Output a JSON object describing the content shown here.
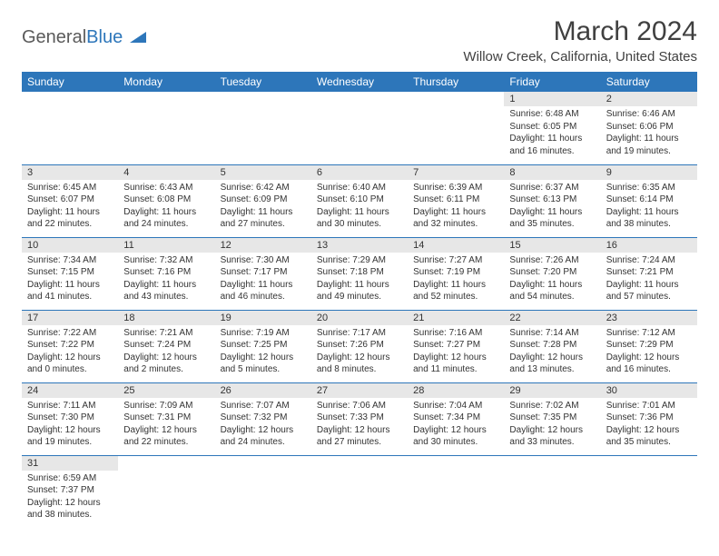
{
  "logo": {
    "text1": "General",
    "text2": "Blue"
  },
  "title": "March 2024",
  "location": "Willow Creek, California, United States",
  "colors": {
    "accent": "#2d76ba",
    "header_bg": "#2d76ba",
    "header_fg": "#ffffff",
    "daynum_bg": "#e7e7e7",
    "body_text": "#333333",
    "title_text": "#404040",
    "logo_gray": "#5a5a5a"
  },
  "day_names": [
    "Sunday",
    "Monday",
    "Tuesday",
    "Wednesday",
    "Thursday",
    "Friday",
    "Saturday"
  ],
  "weeks": [
    [
      null,
      null,
      null,
      null,
      null,
      {
        "n": "1",
        "sunrise": "6:48 AM",
        "sunset": "6:05 PM",
        "day_h": 11,
        "day_m": 16
      },
      {
        "n": "2",
        "sunrise": "6:46 AM",
        "sunset": "6:06 PM",
        "day_h": 11,
        "day_m": 19
      }
    ],
    [
      {
        "n": "3",
        "sunrise": "6:45 AM",
        "sunset": "6:07 PM",
        "day_h": 11,
        "day_m": 22
      },
      {
        "n": "4",
        "sunrise": "6:43 AM",
        "sunset": "6:08 PM",
        "day_h": 11,
        "day_m": 24
      },
      {
        "n": "5",
        "sunrise": "6:42 AM",
        "sunset": "6:09 PM",
        "day_h": 11,
        "day_m": 27
      },
      {
        "n": "6",
        "sunrise": "6:40 AM",
        "sunset": "6:10 PM",
        "day_h": 11,
        "day_m": 30
      },
      {
        "n": "7",
        "sunrise": "6:39 AM",
        "sunset": "6:11 PM",
        "day_h": 11,
        "day_m": 32
      },
      {
        "n": "8",
        "sunrise": "6:37 AM",
        "sunset": "6:13 PM",
        "day_h": 11,
        "day_m": 35
      },
      {
        "n": "9",
        "sunrise": "6:35 AM",
        "sunset": "6:14 PM",
        "day_h": 11,
        "day_m": 38
      }
    ],
    [
      {
        "n": "10",
        "sunrise": "7:34 AM",
        "sunset": "7:15 PM",
        "day_h": 11,
        "day_m": 41
      },
      {
        "n": "11",
        "sunrise": "7:32 AM",
        "sunset": "7:16 PM",
        "day_h": 11,
        "day_m": 43
      },
      {
        "n": "12",
        "sunrise": "7:30 AM",
        "sunset": "7:17 PM",
        "day_h": 11,
        "day_m": 46
      },
      {
        "n": "13",
        "sunrise": "7:29 AM",
        "sunset": "7:18 PM",
        "day_h": 11,
        "day_m": 49
      },
      {
        "n": "14",
        "sunrise": "7:27 AM",
        "sunset": "7:19 PM",
        "day_h": 11,
        "day_m": 52
      },
      {
        "n": "15",
        "sunrise": "7:26 AM",
        "sunset": "7:20 PM",
        "day_h": 11,
        "day_m": 54
      },
      {
        "n": "16",
        "sunrise": "7:24 AM",
        "sunset": "7:21 PM",
        "day_h": 11,
        "day_m": 57
      }
    ],
    [
      {
        "n": "17",
        "sunrise": "7:22 AM",
        "sunset": "7:22 PM",
        "day_h": 12,
        "day_m": 0
      },
      {
        "n": "18",
        "sunrise": "7:21 AM",
        "sunset": "7:24 PM",
        "day_h": 12,
        "day_m": 2
      },
      {
        "n": "19",
        "sunrise": "7:19 AM",
        "sunset": "7:25 PM",
        "day_h": 12,
        "day_m": 5
      },
      {
        "n": "20",
        "sunrise": "7:17 AM",
        "sunset": "7:26 PM",
        "day_h": 12,
        "day_m": 8
      },
      {
        "n": "21",
        "sunrise": "7:16 AM",
        "sunset": "7:27 PM",
        "day_h": 12,
        "day_m": 11
      },
      {
        "n": "22",
        "sunrise": "7:14 AM",
        "sunset": "7:28 PM",
        "day_h": 12,
        "day_m": 13
      },
      {
        "n": "23",
        "sunrise": "7:12 AM",
        "sunset": "7:29 PM",
        "day_h": 12,
        "day_m": 16
      }
    ],
    [
      {
        "n": "24",
        "sunrise": "7:11 AM",
        "sunset": "7:30 PM",
        "day_h": 12,
        "day_m": 19
      },
      {
        "n": "25",
        "sunrise": "7:09 AM",
        "sunset": "7:31 PM",
        "day_h": 12,
        "day_m": 22
      },
      {
        "n": "26",
        "sunrise": "7:07 AM",
        "sunset": "7:32 PM",
        "day_h": 12,
        "day_m": 24
      },
      {
        "n": "27",
        "sunrise": "7:06 AM",
        "sunset": "7:33 PM",
        "day_h": 12,
        "day_m": 27
      },
      {
        "n": "28",
        "sunrise": "7:04 AM",
        "sunset": "7:34 PM",
        "day_h": 12,
        "day_m": 30
      },
      {
        "n": "29",
        "sunrise": "7:02 AM",
        "sunset": "7:35 PM",
        "day_h": 12,
        "day_m": 33
      },
      {
        "n": "30",
        "sunrise": "7:01 AM",
        "sunset": "7:36 PM",
        "day_h": 12,
        "day_m": 35
      }
    ],
    [
      {
        "n": "31",
        "sunrise": "6:59 AM",
        "sunset": "7:37 PM",
        "day_h": 12,
        "day_m": 38
      },
      null,
      null,
      null,
      null,
      null,
      null
    ]
  ],
  "labels": {
    "sunrise": "Sunrise:",
    "sunset": "Sunset:",
    "daylight": "Daylight:",
    "hours": "hours",
    "and": "and",
    "minutes": "minutes."
  }
}
